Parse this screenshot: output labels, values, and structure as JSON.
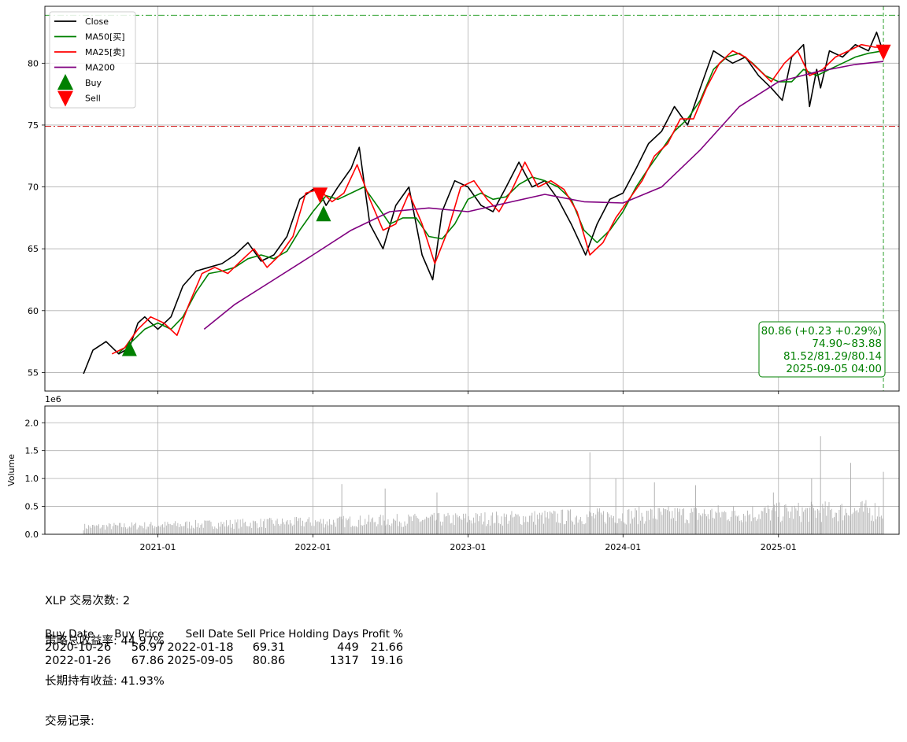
{
  "chart_data": [
    {
      "type": "line",
      "panel": "price",
      "ylim": [
        53.5,
        84.6
      ],
      "yticks": [
        55,
        60,
        65,
        70,
        75,
        80
      ],
      "xlim": [
        "2020-04-10",
        "2025-10-12"
      ],
      "xticks": [
        "2021-01",
        "2022-01",
        "2023-01",
        "2024-01",
        "2025-01"
      ],
      "grid": true,
      "legend_position": "top-left",
      "legend": [
        "Close",
        "MA50[买]",
        "MA25[卖]",
        "MA200",
        "Buy",
        "Sell"
      ],
      "series": [
        {
          "name": "Close",
          "color": "#000000",
          "x": [
            "2020-07-10",
            "2020-08-01",
            "2020-09-01",
            "2020-10-01",
            "2020-10-26",
            "2020-11-15",
            "2020-12-01",
            "2021-01-01",
            "2021-02-01",
            "2021-03-01",
            "2021-04-01",
            "2021-05-01",
            "2021-06-01",
            "2021-07-01",
            "2021-08-01",
            "2021-09-01",
            "2021-10-01",
            "2021-11-01",
            "2021-12-01",
            "2022-01-01",
            "2022-01-18",
            "2022-02-01",
            "2022-03-01",
            "2022-04-01",
            "2022-04-20",
            "2022-05-15",
            "2022-06-15",
            "2022-07-15",
            "2022-08-15",
            "2022-09-15",
            "2022-10-10",
            "2022-11-01",
            "2022-12-01",
            "2023-01-01",
            "2023-02-01",
            "2023-03-01",
            "2023-04-01",
            "2023-05-01",
            "2023-06-01",
            "2023-07-01",
            "2023-08-01",
            "2023-09-01",
            "2023-10-05",
            "2023-11-01",
            "2023-12-01",
            "2024-01-01",
            "2024-02-01",
            "2024-03-01",
            "2024-04-01",
            "2024-05-01",
            "2024-06-01",
            "2024-07-01",
            "2024-08-01",
            "2024-09-15",
            "2024-10-15",
            "2024-11-15",
            "2024-12-15",
            "2025-01-10",
            "2025-02-01",
            "2025-03-01",
            "2025-03-15",
            "2025-04-01",
            "2025-04-10",
            "2025-05-01",
            "2025-06-01",
            "2025-07-01",
            "2025-08-01",
            "2025-08-20",
            "2025-09-05"
          ],
          "values": [
            54.9,
            56.8,
            57.5,
            56.5,
            57.0,
            59.0,
            59.5,
            58.5,
            59.5,
            62.0,
            63.2,
            63.5,
            63.8,
            64.5,
            65.5,
            64.0,
            64.5,
            66.0,
            69.0,
            69.8,
            69.5,
            68.5,
            70.0,
            71.5,
            73.2,
            67.0,
            65.0,
            68.5,
            70.0,
            64.5,
            62.5,
            68.0,
            70.5,
            70.0,
            68.5,
            68.0,
            70.0,
            72.0,
            70.0,
            70.5,
            69.0,
            67.0,
            64.5,
            67.0,
            69.0,
            69.5,
            71.5,
            73.5,
            74.5,
            76.5,
            75.0,
            78.0,
            81.0,
            80.0,
            80.5,
            79.0,
            78.0,
            77.0,
            80.5,
            81.5,
            76.5,
            79.5,
            78.0,
            81.0,
            80.5,
            81.5,
            81.0,
            82.5,
            80.86
          ]
        },
        {
          "name": "MA50[买]",
          "color": "#008000",
          "x": [
            "2020-10-01",
            "2020-11-01",
            "2020-12-01",
            "2021-01-01",
            "2021-02-01",
            "2021-03-01",
            "2021-04-01",
            "2021-05-01",
            "2021-06-01",
            "2021-07-01",
            "2021-08-01",
            "2021-09-01",
            "2021-10-01",
            "2021-11-01",
            "2021-12-01",
            "2022-01-01",
            "2022-02-01",
            "2022-03-01",
            "2022-04-01",
            "2022-05-01",
            "2022-06-01",
            "2022-07-01",
            "2022-08-01",
            "2022-09-01",
            "2022-10-01",
            "2022-11-01",
            "2022-12-01",
            "2023-01-01",
            "2023-02-01",
            "2023-03-01",
            "2023-04-01",
            "2023-05-01",
            "2023-06-01",
            "2023-07-01",
            "2023-08-01",
            "2023-09-01",
            "2023-10-01",
            "2023-11-01",
            "2023-12-01",
            "2024-01-01",
            "2024-02-01",
            "2024-03-01",
            "2024-04-01",
            "2024-05-01",
            "2024-06-01",
            "2024-07-01",
            "2024-08-01",
            "2024-09-01",
            "2024-10-01",
            "2024-11-01",
            "2024-12-01",
            "2025-01-01",
            "2025-02-01",
            "2025-03-01",
            "2025-04-01",
            "2025-05-01",
            "2025-06-01",
            "2025-07-01",
            "2025-08-01",
            "2025-09-05"
          ],
          "values": [
            56.6,
            57.5,
            58.5,
            59.0,
            58.5,
            59.5,
            61.5,
            63.0,
            63.2,
            63.5,
            64.2,
            64.5,
            64.2,
            64.8,
            66.5,
            68.0,
            69.3,
            69.0,
            69.5,
            70.0,
            68.5,
            67.0,
            67.5,
            67.5,
            66.0,
            65.8,
            67.0,
            69.0,
            69.5,
            69.0,
            69.2,
            70.2,
            70.8,
            70.5,
            70.0,
            69.0,
            66.5,
            65.5,
            66.5,
            68.0,
            70.0,
            71.5,
            73.0,
            74.5,
            75.5,
            77.0,
            79.5,
            80.5,
            80.8,
            80.0,
            79.0,
            78.5,
            78.5,
            79.5,
            79.0,
            79.5,
            80.0,
            80.5,
            80.8,
            81.0
          ]
        },
        {
          "name": "MA25[卖]",
          "color": "#ff0000",
          "x": [
            "2020-09-15",
            "2020-10-15",
            "2020-11-15",
            "2020-12-15",
            "2021-01-15",
            "2021-02-15",
            "2021-03-15",
            "2021-04-15",
            "2021-05-15",
            "2021-06-15",
            "2021-07-15",
            "2021-08-15",
            "2021-09-15",
            "2021-10-15",
            "2021-11-15",
            "2021-12-15",
            "2022-01-15",
            "2022-02-15",
            "2022-03-15",
            "2022-04-15",
            "2022-05-15",
            "2022-06-15",
            "2022-07-15",
            "2022-08-15",
            "2022-09-15",
            "2022-10-15",
            "2022-11-15",
            "2022-12-15",
            "2023-01-15",
            "2023-02-15",
            "2023-03-15",
            "2023-04-15",
            "2023-05-15",
            "2023-06-15",
            "2023-07-15",
            "2023-08-15",
            "2023-09-15",
            "2023-10-15",
            "2023-11-15",
            "2023-12-15",
            "2024-01-15",
            "2024-02-15",
            "2024-03-15",
            "2024-04-15",
            "2024-05-15",
            "2024-06-15",
            "2024-07-15",
            "2024-08-15",
            "2024-09-15",
            "2024-10-15",
            "2024-11-15",
            "2024-12-15",
            "2025-01-15",
            "2025-02-15",
            "2025-03-15",
            "2025-04-15",
            "2025-05-15",
            "2025-06-15",
            "2025-07-15",
            "2025-08-15",
            "2025-09-05"
          ],
          "values": [
            56.5,
            57.0,
            58.5,
            59.5,
            59.0,
            58.0,
            60.5,
            63.0,
            63.5,
            63.0,
            64.0,
            65.0,
            63.5,
            64.5,
            66.0,
            69.5,
            69.8,
            68.8,
            69.5,
            71.8,
            69.0,
            66.5,
            67.0,
            69.5,
            67.0,
            63.8,
            66.5,
            70.0,
            70.5,
            69.0,
            68.0,
            69.8,
            72.0,
            70.0,
            70.5,
            69.8,
            68.0,
            64.5,
            65.5,
            67.5,
            69.0,
            70.5,
            72.5,
            73.5,
            75.5,
            75.5,
            78.0,
            80.0,
            81.0,
            80.5,
            79.5,
            78.5,
            80.0,
            81.0,
            79.0,
            79.5,
            80.5,
            81.0,
            81.5,
            81.3,
            81.3
          ]
        },
        {
          "name": "MA200",
          "color": "#800080",
          "x": [
            "2021-04-20",
            "2021-07-01",
            "2021-10-01",
            "2022-01-01",
            "2022-04-01",
            "2022-07-01",
            "2022-10-01",
            "2023-01-01",
            "2023-04-01",
            "2023-07-01",
            "2023-10-01",
            "2024-01-01",
            "2024-04-01",
            "2024-07-01",
            "2024-10-01",
            "2025-01-01",
            "2025-04-01",
            "2025-07-01",
            "2025-09-05"
          ],
          "values": [
            58.5,
            60.5,
            62.5,
            64.5,
            66.5,
            68.0,
            68.3,
            68.0,
            68.7,
            69.4,
            68.8,
            68.7,
            70.0,
            73.0,
            76.5,
            78.5,
            79.3,
            79.9,
            80.14
          ]
        }
      ],
      "markers": [
        {
          "type": "Buy",
          "date": "2020-10-26",
          "price": 56.97,
          "color": "#008000"
        },
        {
          "type": "Buy",
          "date": "2022-01-26",
          "price": 67.86,
          "color": "#008000"
        },
        {
          "type": "Sell",
          "date": "2022-01-18",
          "price": 69.31,
          "color": "#ff0000"
        },
        {
          "type": "Sell",
          "date": "2025-09-05",
          "price": 80.86,
          "color": "#ff0000"
        }
      ],
      "hlines": [
        {
          "value": 83.88,
          "color": "#2ca02c"
        },
        {
          "value": 74.9,
          "color": "#d62728"
        }
      ],
      "vline": {
        "date": "2025-09-05",
        "color": "#2ca02c"
      },
      "info_box": {
        "lines": [
          "80.86 (+0.23 +0.29%)",
          "74.90~83.88",
          "81.52/81.29/80.14",
          "2025-09-05 04:00"
        ],
        "color": "#008000"
      }
    },
    {
      "type": "bar",
      "panel": "volume",
      "ylabel": "Volume",
      "scale_label": "1e6",
      "ylim": [
        0,
        2.3
      ],
      "yticks": [
        "0.0",
        "0.5",
        "1.0",
        "1.5",
        "2.0"
      ],
      "ytick_values": [
        0,
        0.5,
        1.0,
        1.5,
        2.0
      ],
      "xticks": [
        "2021-01",
        "2022-01",
        "2023-01",
        "2024-01",
        "2025-01"
      ],
      "grid": true,
      "color": "#aaaaaa",
      "spikes": [
        {
          "date": "2022-03-10",
          "value": 0.9
        },
        {
          "date": "2022-06-20",
          "value": 0.82
        },
        {
          "date": "2022-10-20",
          "value": 0.75
        },
        {
          "date": "2023-10-15",
          "value": 1.47
        },
        {
          "date": "2023-12-15",
          "value": 1.0
        },
        {
          "date": "2024-03-15",
          "value": 0.93
        },
        {
          "date": "2024-06-20",
          "value": 0.88
        },
        {
          "date": "2024-12-20",
          "value": 0.75
        },
        {
          "date": "2025-03-20",
          "value": 1.0
        },
        {
          "date": "2025-04-10",
          "value": 1.76
        },
        {
          "date": "2025-06-20",
          "value": 1.28
        },
        {
          "date": "2025-09-05",
          "value": 1.12
        }
      ]
    }
  ],
  "stats": {
    "trade_count": "XLP 交易次数: 2",
    "strategy_return": "策略总收益率: 44.97%",
    "buy_hold_return": "长期持有收益: 41.93%",
    "records_title": "交易记录:"
  },
  "trades": {
    "headers": [
      "Buy Date",
      "Buy Price",
      "Sell Date",
      "Sell Price",
      "Holding Days",
      "Profit %"
    ],
    "rows": [
      [
        "2020-10-26",
        "56.97",
        "2022-01-18",
        "69.31",
        "449",
        "21.66"
      ],
      [
        "2022-01-26",
        "67.86",
        "2025-09-05",
        "80.86",
        "1317",
        "19.16"
      ]
    ]
  }
}
